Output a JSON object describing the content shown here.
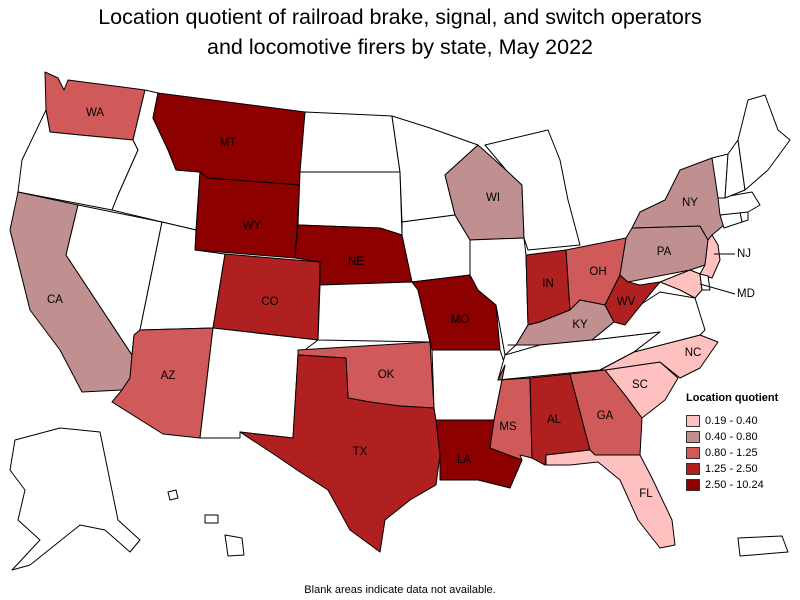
{
  "title": {
    "line1": "Location quotient of railroad brake, signal, and switch operators",
    "line2": "and locomotive firers by state, May 2022"
  },
  "legend": {
    "title": "Location quotient",
    "items": [
      {
        "label": "0.19 - 0.40",
        "color": "#ffc0c0"
      },
      {
        "label": "0.40 - 0.80",
        "color": "#c09090"
      },
      {
        "label": "0.80 - 1.25",
        "color": "#d05a5a"
      },
      {
        "label": "1.25 - 2.50",
        "color": "#b02020"
      },
      {
        "label": "2.50 - 10.24",
        "color": "#8c0000"
      }
    ]
  },
  "blank_color": "#ffffff",
  "states": {
    "WA": {
      "label": "WA",
      "bin": 2
    },
    "OR": {
      "label": "",
      "bin": null
    },
    "CA": {
      "label": "CA",
      "bin": 1
    },
    "NV": {
      "label": "",
      "bin": null
    },
    "ID": {
      "label": "",
      "bin": null
    },
    "MT": {
      "label": "MT",
      "bin": 4
    },
    "WY": {
      "label": "WY",
      "bin": 4
    },
    "UT": {
      "label": "",
      "bin": null
    },
    "AZ": {
      "label": "AZ",
      "bin": 2
    },
    "CO": {
      "label": "CO",
      "bin": 3
    },
    "NM": {
      "label": "",
      "bin": null
    },
    "ND": {
      "label": "",
      "bin": null
    },
    "SD": {
      "label": "",
      "bin": null
    },
    "NE": {
      "label": "NE",
      "bin": 4
    },
    "KS": {
      "label": "",
      "bin": null
    },
    "OK": {
      "label": "OK",
      "bin": 2
    },
    "TX": {
      "label": "TX",
      "bin": 3
    },
    "MN": {
      "label": "",
      "bin": null
    },
    "IA": {
      "label": "",
      "bin": null
    },
    "MO": {
      "label": "MO",
      "bin": 4
    },
    "AR": {
      "label": "",
      "bin": null
    },
    "LA": {
      "label": "LA",
      "bin": 4
    },
    "WI": {
      "label": "WI",
      "bin": 1
    },
    "IL": {
      "label": "",
      "bin": null
    },
    "MI": {
      "label": "",
      "bin": null
    },
    "IN": {
      "label": "IN",
      "bin": 3
    },
    "OH": {
      "label": "OH",
      "bin": 2
    },
    "KY": {
      "label": "KY",
      "bin": 1
    },
    "TN": {
      "label": "",
      "bin": null
    },
    "MS": {
      "label": "MS",
      "bin": 2
    },
    "AL": {
      "label": "AL",
      "bin": 3
    },
    "GA": {
      "label": "GA",
      "bin": 2
    },
    "FL": {
      "label": "FL",
      "bin": 0
    },
    "SC": {
      "label": "SC",
      "bin": 0
    },
    "NC": {
      "label": "NC",
      "bin": 0
    },
    "VA": {
      "label": "",
      "bin": null
    },
    "WV": {
      "label": "WV",
      "bin": 3
    },
    "PA": {
      "label": "PA",
      "bin": 1
    },
    "NY": {
      "label": "NY",
      "bin": 1
    },
    "NJ": {
      "label": "NJ",
      "bin": 0
    },
    "MD": {
      "label": "MD",
      "bin": 0
    },
    "DE": {
      "label": "",
      "bin": null
    },
    "CT": {
      "label": "",
      "bin": null
    },
    "RI": {
      "label": "",
      "bin": null
    },
    "MA": {
      "label": "",
      "bin": null
    },
    "VT": {
      "label": "",
      "bin": null
    },
    "NH": {
      "label": "",
      "bin": null
    },
    "ME": {
      "label": "",
      "bin": null
    },
    "AK": {
      "label": "",
      "bin": null
    },
    "HI": {
      "label": "",
      "bin": null
    },
    "PR": {
      "label": "",
      "bin": null
    }
  },
  "footnote": "Blank areas indicate data not available."
}
